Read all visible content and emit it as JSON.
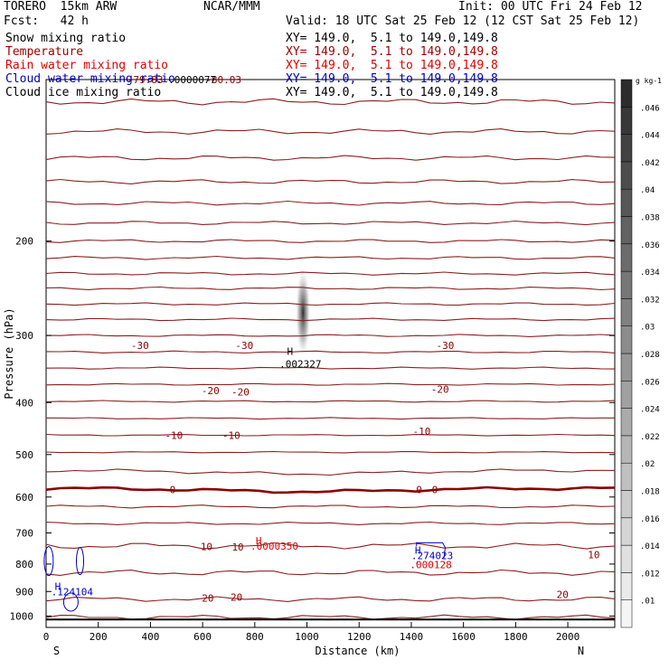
{
  "header": {
    "model": "TORERO  15km ARW",
    "fcst": "Fcst:   42 h",
    "center": "NCAR/MMM",
    "init": "Init: 00 UTC Fri 24 Feb 12",
    "valid": "Valid: 18 UTC Sat 25 Feb 12 (12 CST Sat 25 Feb 12)"
  },
  "legend": [
    {
      "name": "Snow mixing ratio",
      "xy": "XY= 149.0,  5.1 to 149.0,149.8",
      "color": "#000000"
    },
    {
      "name": "Temperature",
      "xy": "XY= 149.0,  5.1 to 149.0,149.8",
      "color": "#a00000"
    },
    {
      "name": "Rain water mixing ratio",
      "xy": "XY= 149.0,  5.1 to 149.0,149.8",
      "color": "#e00000"
    },
    {
      "name": "Cloud water mixing ratio",
      "xy": "XY= 149.0,  5.1 to 149.0,149.8",
      "color": "#0000c0"
    },
    {
      "name": "Cloud ice mixing ratio",
      "xy": "XY= 149.0,  5.1 to 149.0,149.8",
      "color": "#000000"
    }
  ],
  "chart_data": {
    "type": "contour cross-section",
    "xlabel": "Distance (km)",
    "ylabel": "Pressure (hPa)",
    "xlim": [
      0,
      2180
    ],
    "ylim": [
      1050,
      100
    ],
    "xticks": [
      0,
      200,
      400,
      600,
      800,
      1000,
      1200,
      1400,
      1600,
      1800,
      2000
    ],
    "yticks": [
      200,
      300,
      400,
      500,
      600,
      700,
      800,
      900,
      1000
    ],
    "x_endpoints": {
      "left": "S",
      "right": "N"
    },
    "colorbar": {
      "unit": "g kg-1",
      "ticks": [
        ".01",
        ".012",
        ".014",
        ".016",
        ".018",
        ".02",
        ".022",
        ".024",
        ".026",
        ".028",
        ".03",
        ".032",
        ".034",
        ".036",
        ".038",
        ".04",
        ".042",
        ".044",
        ".046"
      ]
    },
    "temperature_isotherm_labels": [
      {
        "text": "-79.83",
        "x": 380,
        "p": 100
      },
      {
        "text": "-80.03",
        "x": 680,
        "p": 100
      },
      {
        "text": "-30",
        "x": 360,
        "p": 313
      },
      {
        "text": "-30",
        "x": 760,
        "p": 313
      },
      {
        "text": "-30",
        "x": 1530,
        "p": 313
      },
      {
        "text": "-20",
        "x": 630,
        "p": 380
      },
      {
        "text": "-20",
        "x": 745,
        "p": 382
      },
      {
        "text": "-20",
        "x": 1510,
        "p": 378
      },
      {
        "text": "-10",
        "x": 490,
        "p": 460
      },
      {
        "text": "-10",
        "x": 710,
        "p": 460
      },
      {
        "text": "-10",
        "x": 1440,
        "p": 452
      },
      {
        "text": "0",
        "x": 485,
        "p": 581
      },
      {
        "text": "0",
        "x": 1430,
        "p": 581
      },
      {
        "text": "0",
        "x": 1490,
        "p": 581
      },
      {
        "text": "10",
        "x": 615,
        "p": 742
      },
      {
        "text": "10",
        "x": 735,
        "p": 744
      },
      {
        "text": "10",
        "x": 2100,
        "p": 768
      },
      {
        "text": "20",
        "x": 620,
        "p": 925
      },
      {
        "text": "20",
        "x": 730,
        "p": 922
      },
      {
        "text": "20",
        "x": 1980,
        "p": 912
      }
    ],
    "maxima": [
      {
        "text": ".0000077",
        "x": 560,
        "p": 100,
        "color": "#000000"
      },
      {
        "text": "H",
        "x": 935,
        "p": 321,
        "color": "#000000"
      },
      {
        "text": ".002327",
        "x": 975,
        "p": 339,
        "color": "#000000"
      },
      {
        "text": "H",
        "x": 815,
        "p": 723,
        "color": "#e00000"
      },
      {
        "text": ".0000350",
        "x": 875,
        "p": 740,
        "color": "#e00000"
      },
      {
        "text": "H",
        "x": 1425,
        "p": 753,
        "color": "#0000c0"
      },
      {
        "text": ".274023",
        "x": 1480,
        "p": 771,
        "color": "#0000c0"
      },
      {
        "text": ".000128",
        "x": 1475,
        "p": 802,
        "color": "#e00000"
      },
      {
        "text": "H",
        "x": 45,
        "p": 880,
        "color": "#0000c0"
      },
      {
        "text": ".124104",
        "x": 100,
        "p": 900,
        "color": "#0000c0"
      }
    ]
  }
}
